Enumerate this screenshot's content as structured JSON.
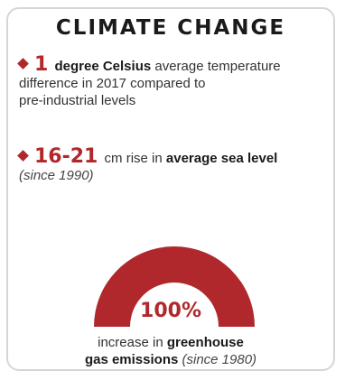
{
  "title": "CLIMATE CHANGE",
  "colors": {
    "accent": "#b0282c",
    "text": "#333333",
    "border": "#d6d6d6"
  },
  "fact1": {
    "value": "1",
    "bold": "degree Celsius",
    "text_1": "average temperature",
    "line2": "difference in 2017 compared to",
    "line3": "pre-industrial levels"
  },
  "fact2": {
    "value": "16-21",
    "text_1": "cm rise in",
    "bold": "average sea level",
    "note": "(since 1990)"
  },
  "gauge": {
    "value": "100%",
    "fill_fraction": 1.0,
    "text_1": "increase in",
    "bold_1": "greenhouse",
    "bold_2": "gas emissions",
    "note": "(since 1980)"
  }
}
